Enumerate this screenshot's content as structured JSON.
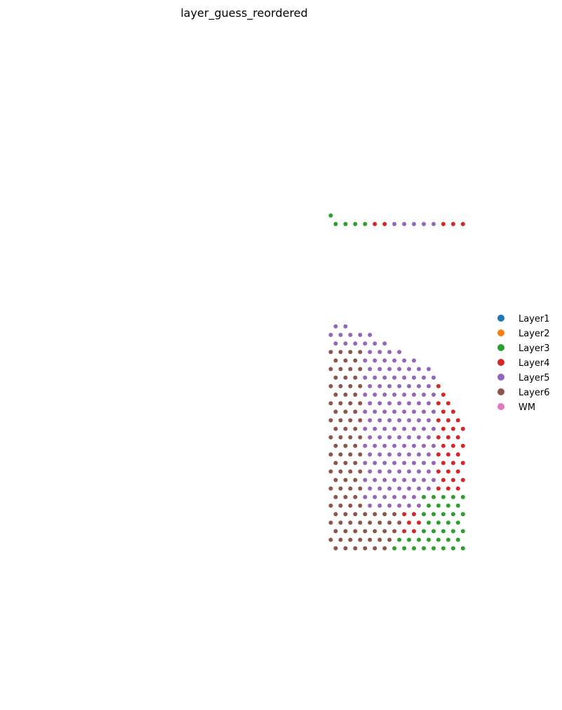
{
  "chart_data": {
    "type": "scatter",
    "title": "layer_guess_reordered",
    "xlabel": "",
    "ylabel": "",
    "axes_visible": false,
    "grid": false,
    "legend_position": "right",
    "categories": [
      "Layer1",
      "Layer2",
      "Layer3",
      "Layer4",
      "Layer5",
      "Layer6",
      "WM"
    ],
    "colors": {
      "Layer1": "#1f77b4",
      "Layer2": "#ff7f0e",
      "Layer3": "#2ca02c",
      "Layer4": "#d62728",
      "Layer5": "#9467bd",
      "Layer6": "#8c564b",
      "WM": "#e377c2"
    },
    "layout": "hexagonal spot grid, 59 rows, colored by layer"
  }
}
